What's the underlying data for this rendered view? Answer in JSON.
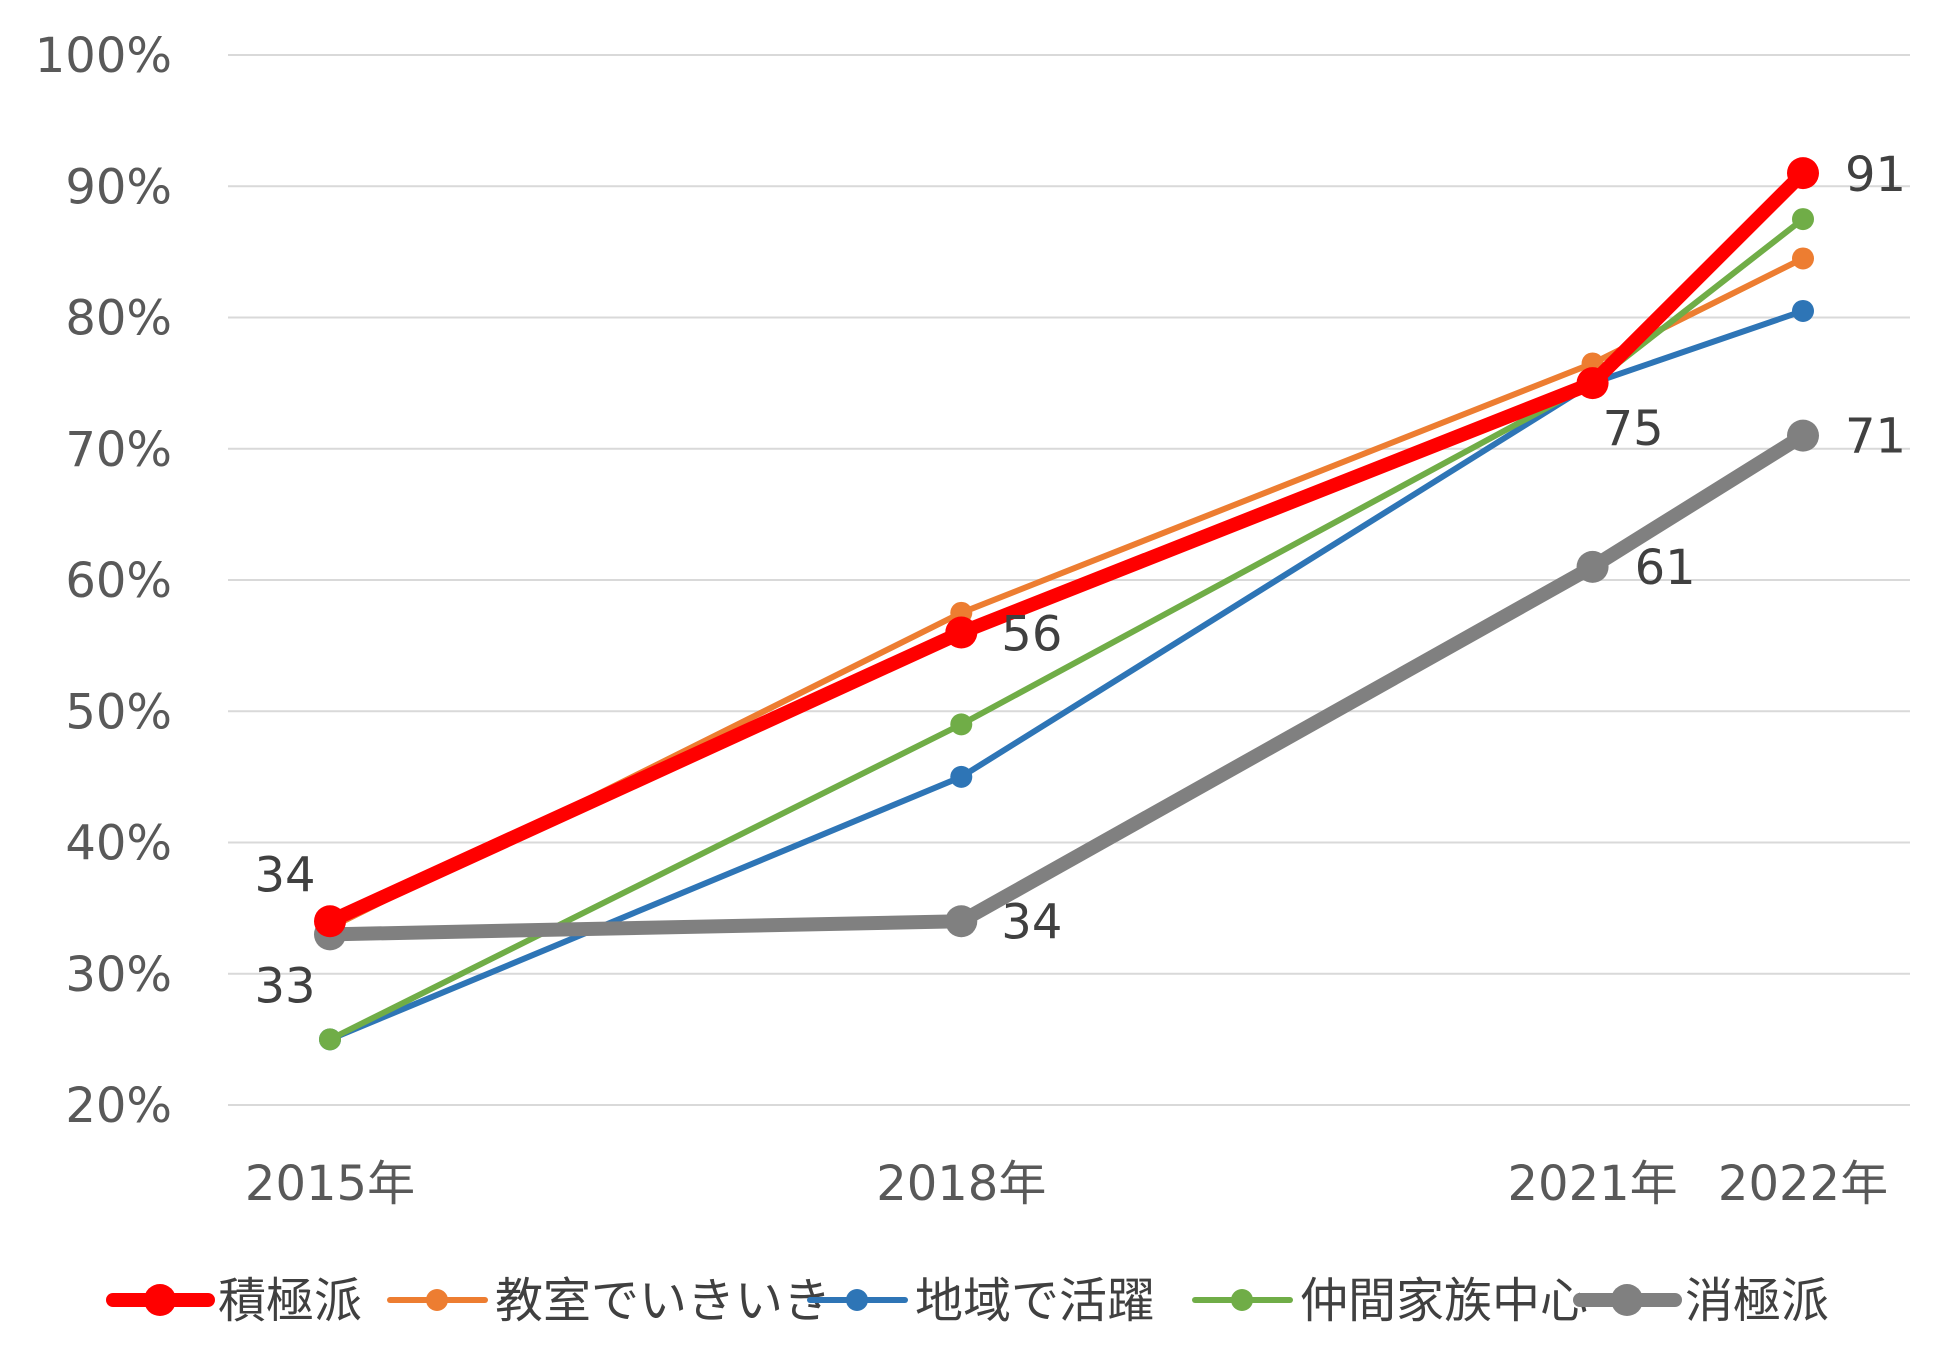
{
  "chart_data": {
    "type": "line",
    "title": "",
    "xlabel": "",
    "ylabel": "",
    "ylim": [
      20,
      100
    ],
    "y_ticks": [
      "20%",
      "30%",
      "40%",
      "50%",
      "60%",
      "70%",
      "80%",
      "90%",
      "100%"
    ],
    "y_tick_values": [
      20,
      30,
      40,
      50,
      60,
      70,
      80,
      90,
      100
    ],
    "x": [
      2015,
      2018,
      2021,
      2022
    ],
    "categories": [
      "2015年",
      "2018年",
      "2021年",
      "2022年"
    ],
    "grid": true,
    "legend_position": "bottom",
    "series": [
      {
        "name": "積極派",
        "color": "#ff0000",
        "emphasis": "thick",
        "values": [
          34,
          56,
          75,
          91
        ],
        "labels": [
          "34",
          "56",
          "75",
          "91"
        ]
      },
      {
        "name": "教室でいきいき",
        "color": "#ed7d31",
        "emphasis": "normal",
        "values": [
          33.5,
          57.5,
          76.5,
          84.5
        ],
        "labels": []
      },
      {
        "name": "地域で活躍",
        "color": "#2e75b6",
        "emphasis": "normal",
        "values": [
          25,
          45,
          75,
          80.5
        ],
        "labels": []
      },
      {
        "name": "仲間家族中心",
        "color": "#70ad47",
        "emphasis": "normal",
        "values": [
          25,
          49,
          75,
          87.5
        ],
        "labels": []
      },
      {
        "name": "消極派",
        "color": "#808080",
        "emphasis": "thick",
        "values": [
          33,
          34,
          61,
          71
        ],
        "labels": [
          "33",
          "34",
          "61",
          "71"
        ]
      }
    ]
  }
}
